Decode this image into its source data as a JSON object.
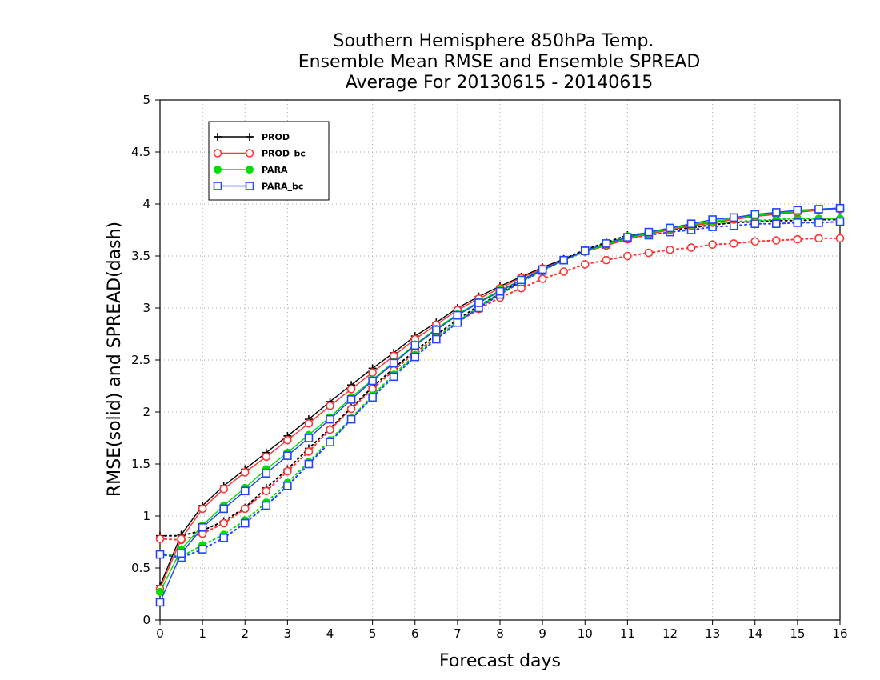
{
  "chart_data": {
    "type": "line",
    "title": [
      "Southern Hemisphere 850hPa Temp.",
      "Ensemble Mean RMSE and Ensemble SPREAD",
      "Average For 20130615 - 20140615"
    ],
    "xlabel": "Forecast days",
    "ylabel": "RMSE(solid) and SPREAD(dash)",
    "xlim": [
      0,
      16
    ],
    "ylim": [
      0,
      5
    ],
    "xticks": [
      "0",
      "1",
      "2",
      "3",
      "4",
      "5",
      "6",
      "7",
      "8",
      "9",
      "10",
      "11",
      "12",
      "13",
      "14",
      "15",
      "16"
    ],
    "yticks": [
      "0",
      "0.5",
      "1",
      "1.5",
      "2",
      "2.5",
      "3",
      "3.5",
      "4",
      "4.5",
      "5"
    ],
    "grid": true,
    "legend_position": "top-left",
    "x": [
      0,
      0.5,
      1,
      1.5,
      2,
      2.5,
      3,
      3.5,
      4,
      4.5,
      5,
      5.5,
      6,
      6.5,
      7,
      7.5,
      8,
      8.5,
      9,
      9.5,
      10,
      10.5,
      11,
      11.5,
      12,
      12.5,
      13,
      13.5,
      14,
      14.5,
      15,
      15.5,
      16
    ],
    "series": [
      {
        "name": "PROD",
        "kind": "rmse",
        "color": "#000000",
        "marker": "plus",
        "values": [
          0.33,
          0.82,
          1.1,
          1.29,
          1.45,
          1.61,
          1.77,
          1.93,
          2.1,
          2.26,
          2.42,
          2.57,
          2.73,
          2.86,
          3.0,
          3.11,
          3.21,
          3.3,
          3.39,
          3.47,
          3.55,
          3.61,
          3.67,
          3.72,
          3.76,
          3.8,
          3.83,
          3.86,
          3.89,
          3.91,
          3.93,
          3.95,
          3.96
        ]
      },
      {
        "name": "PROD_bc",
        "kind": "rmse",
        "color": "#ff3333",
        "marker": "circle",
        "values": [
          0.3,
          0.78,
          1.07,
          1.26,
          1.42,
          1.57,
          1.73,
          1.89,
          2.06,
          2.22,
          2.38,
          2.54,
          2.7,
          2.84,
          2.98,
          3.09,
          3.19,
          3.29,
          3.38,
          3.46,
          3.54,
          3.6,
          3.66,
          3.71,
          3.75,
          3.79,
          3.82,
          3.85,
          3.88,
          3.9,
          3.92,
          3.94,
          3.95
        ]
      },
      {
        "name": "PARA",
        "kind": "rmse",
        "color": "#00dd00",
        "marker": "dot",
        "values": [
          0.27,
          0.68,
          0.91,
          1.1,
          1.27,
          1.45,
          1.61,
          1.78,
          1.95,
          2.14,
          2.31,
          2.48,
          2.65,
          2.8,
          2.94,
          3.06,
          3.17,
          3.27,
          3.37,
          3.46,
          3.54,
          3.61,
          3.67,
          3.72,
          3.76,
          3.8,
          3.83,
          3.86,
          3.89,
          3.91,
          3.93,
          3.95,
          3.96
        ]
      },
      {
        "name": "PARA_bc",
        "kind": "rmse",
        "color": "#2244ff",
        "marker": "square",
        "values": [
          0.17,
          0.64,
          0.89,
          1.07,
          1.24,
          1.41,
          1.58,
          1.75,
          1.93,
          2.12,
          2.3,
          2.47,
          2.64,
          2.79,
          2.93,
          3.05,
          3.16,
          3.27,
          3.37,
          3.46,
          3.55,
          3.62,
          3.68,
          3.73,
          3.77,
          3.81,
          3.85,
          3.87,
          3.9,
          3.92,
          3.94,
          3.95,
          3.96
        ]
      },
      {
        "name": "PROD spread",
        "kind": "spread",
        "color": "#000000",
        "marker": "plus",
        "values": [
          0.81,
          0.81,
          0.86,
          0.95,
          1.08,
          1.27,
          1.45,
          1.65,
          1.84,
          2.04,
          2.24,
          2.42,
          2.59,
          2.74,
          2.89,
          3.02,
          3.14,
          3.26,
          3.37,
          3.47,
          3.56,
          3.63,
          3.7,
          3.72,
          3.75,
          3.77,
          3.8,
          3.82,
          3.83,
          3.84,
          3.84,
          3.85,
          3.85
        ]
      },
      {
        "name": "PROD_bc spread",
        "kind": "spread",
        "color": "#ff3333",
        "marker": "circle",
        "values": [
          0.78,
          0.77,
          0.83,
          0.93,
          1.07,
          1.24,
          1.43,
          1.62,
          1.83,
          2.03,
          2.22,
          2.4,
          2.57,
          2.72,
          2.86,
          2.99,
          3.1,
          3.19,
          3.28,
          3.35,
          3.42,
          3.46,
          3.5,
          3.53,
          3.56,
          3.58,
          3.61,
          3.62,
          3.64,
          3.65,
          3.66,
          3.67,
          3.67
        ]
      },
      {
        "name": "PARA spread",
        "kind": "spread",
        "color": "#00dd00",
        "marker": "dot",
        "values": [
          0.64,
          0.61,
          0.72,
          0.82,
          0.96,
          1.13,
          1.32,
          1.52,
          1.73,
          1.94,
          2.16,
          2.36,
          2.55,
          2.71,
          2.87,
          3.01,
          3.14,
          3.25,
          3.36,
          3.46,
          3.55,
          3.62,
          3.69,
          3.73,
          3.76,
          3.79,
          3.81,
          3.83,
          3.84,
          3.85,
          3.86,
          3.86,
          3.86
        ]
      },
      {
        "name": "PARA_bc spread",
        "kind": "spread",
        "color": "#2244ff",
        "marker": "square",
        "values": [
          0.63,
          0.6,
          0.68,
          0.79,
          0.93,
          1.1,
          1.29,
          1.5,
          1.71,
          1.93,
          2.14,
          2.34,
          2.53,
          2.7,
          2.86,
          3.0,
          3.13,
          3.25,
          3.36,
          3.46,
          3.55,
          3.61,
          3.67,
          3.7,
          3.73,
          3.75,
          3.78,
          3.79,
          3.81,
          3.81,
          3.82,
          3.82,
          3.83
        ]
      }
    ]
  },
  "legend": [
    {
      "label": "PROD",
      "color": "#000000",
      "marker": "plus"
    },
    {
      "label": "PROD_bc",
      "color": "#ff3333",
      "marker": "circle"
    },
    {
      "label": "PARA",
      "color": "#00dd00",
      "marker": "dot"
    },
    {
      "label": "PARA_bc",
      "color": "#2244ff",
      "marker": "square"
    }
  ]
}
